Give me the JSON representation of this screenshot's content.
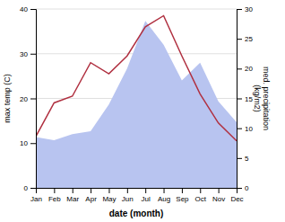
{
  "chart_data": {
    "type": "line",
    "xlabel": "date (month)",
    "ylabel": "max temp (C)",
    "y2label": "med. precipitation\n(kg/m2)",
    "categories": [
      "Jan",
      "Feb",
      "Mar",
      "Apr",
      "May",
      "Jun",
      "Jul",
      "Aug",
      "Sep",
      "Oct",
      "Nov",
      "Dec"
    ],
    "series": [
      {
        "type": "area",
        "axis": "y2",
        "color": "#b8c4f0",
        "values": [
          8.5,
          8.0,
          9.0,
          9.5,
          14.0,
          20.0,
          28.0,
          24.0,
          18.0,
          21.0,
          14.5,
          11.0
        ]
      },
      {
        "type": "line",
        "color": "#b03040",
        "values": [
          11.5,
          19.0,
          20.5,
          28.0,
          25.5,
          29.5,
          36.0,
          38.5,
          29.5,
          21.0,
          14.5,
          10.5
        ]
      }
    ],
    "ylim": [
      0,
      40
    ],
    "yticks": [
      0,
      10,
      20,
      30,
      40
    ],
    "y2lim": [
      0,
      30
    ],
    "y2ticks": [
      0,
      5,
      10,
      15,
      20,
      25,
      30
    ],
    "grid": true
  }
}
